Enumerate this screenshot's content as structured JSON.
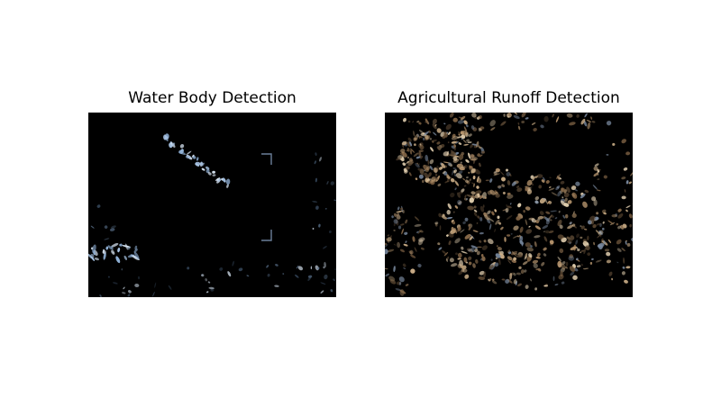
{
  "figure": {
    "background": "#ffffff",
    "panels": [
      {
        "title": "Water Body Detection",
        "image": "water-detection-mask",
        "base_color": "#000000",
        "highlight_color": "#a8c4e4"
      },
      {
        "title": "Agricultural Runoff Detection",
        "image": "runoff-detection-mask",
        "base_color": "#000000",
        "highlight_color": "#b8966e"
      }
    ]
  }
}
